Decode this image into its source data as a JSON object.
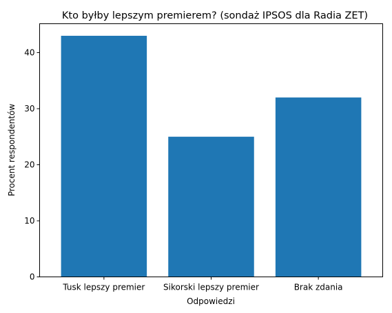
{
  "chart_data": {
    "type": "bar",
    "title": "Kto byłby lepszym premierem? (sondaż IPSOS dla Radia ZET)",
    "xlabel": "Odpowiedzi",
    "ylabel": "Procent respondentów",
    "categories": [
      "Tusk lepszy premier",
      "Sikorski lepszy premier",
      "Brak zdania"
    ],
    "values": [
      43,
      25,
      32
    ],
    "ylim": [
      0,
      45.15
    ],
    "yticks": [
      0,
      10,
      20,
      30,
      40
    ],
    "bar_color": "#1f77b4",
    "grid": false,
    "legend": "none"
  }
}
